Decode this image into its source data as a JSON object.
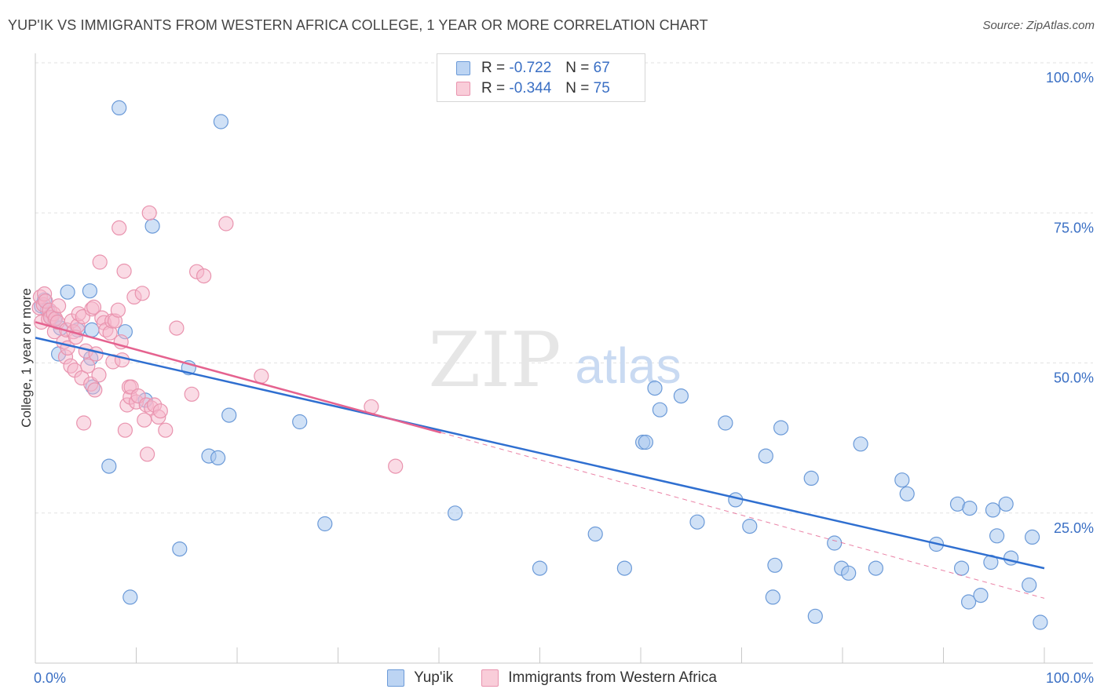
{
  "header": {
    "title": "YUP'IK VS IMMIGRANTS FROM WESTERN AFRICA COLLEGE, 1 YEAR OR MORE CORRELATION CHART",
    "source": "Source: ZipAtlas.com"
  },
  "watermark": {
    "zip": "ZIP",
    "atlas": "atlas"
  },
  "colors": {
    "blue_fill": "#a9c8ef",
    "blue_stroke": "#6b9ad8",
    "blue_line": "#2f6fd0",
    "pink_fill": "#f6b8cb",
    "pink_stroke": "#e993ae",
    "pink_line": "#e5628f",
    "axis_text": "#3a6fc4",
    "grid": "#e2e2e2"
  },
  "stats": {
    "r_label": "R =",
    "n_label": "N =",
    "rows": [
      {
        "series": "Yup'ik",
        "r": "-0.722",
        "n": "67"
      },
      {
        "series": "Immigrants from Western Africa",
        "r": "-0.344",
        "n": "75"
      }
    ]
  },
  "legend": [
    "Yup'ik",
    "Immigrants from Western Africa"
  ],
  "chart_data": {
    "type": "scatter",
    "title": "YUP'IK VS IMMIGRANTS FROM WESTERN AFRICA COLLEGE, 1 YEAR OR MORE CORRELATION CHART",
    "xlabel": "",
    "ylabel": "College, 1 year or more",
    "xlim": [
      0,
      100
    ],
    "ylim": [
      0,
      100
    ],
    "x_tick_labels": [
      "0.0%",
      "100.0%"
    ],
    "y_tick_labels": [
      "25.0%",
      "50.0%",
      "75.0%",
      "100.0%"
    ],
    "y_ticks": [
      25,
      50,
      75,
      100
    ],
    "x_ticks": [
      0,
      10,
      20,
      30,
      40,
      50,
      60,
      70,
      80,
      90,
      100
    ],
    "grid": true,
    "legend_position": "bottom",
    "series": [
      {
        "name": "Yup'ik",
        "r": -0.722,
        "n": 67,
        "trend": {
          "x": [
            0,
            100
          ],
          "y": [
            54.2,
            15.8
          ]
        },
        "points": [
          [
            0.6,
            59.5
          ],
          [
            0.9,
            60.5
          ],
          [
            1.2,
            58.8
          ],
          [
            1.6,
            57.5
          ],
          [
            2.3,
            51.5
          ],
          [
            2.5,
            55.8
          ],
          [
            3.2,
            61.8
          ],
          [
            4.2,
            55.5
          ],
          [
            5.4,
            62.0
          ],
          [
            5.5,
            50.8
          ],
          [
            5.6,
            55.5
          ],
          [
            5.7,
            46.0
          ],
          [
            7.3,
            32.8
          ],
          [
            8.3,
            92.5
          ],
          [
            8.9,
            55.2
          ],
          [
            9.4,
            11.0
          ],
          [
            10.9,
            43.8
          ],
          [
            11.6,
            72.8
          ],
          [
            14.3,
            19.0
          ],
          [
            15.2,
            49.2
          ],
          [
            17.2,
            34.5
          ],
          [
            18.1,
            34.2
          ],
          [
            18.4,
            90.2
          ],
          [
            19.2,
            41.3
          ],
          [
            26.2,
            40.2
          ],
          [
            28.7,
            23.2
          ],
          [
            41.6,
            25.0
          ],
          [
            50.0,
            15.8
          ],
          [
            55.5,
            21.5
          ],
          [
            58.4,
            15.8
          ],
          [
            60.2,
            36.8
          ],
          [
            60.5,
            36.8
          ],
          [
            61.4,
            45.8
          ],
          [
            61.9,
            42.2
          ],
          [
            64.0,
            44.5
          ],
          [
            65.6,
            23.5
          ],
          [
            68.4,
            40.0
          ],
          [
            69.4,
            27.2
          ],
          [
            70.8,
            22.8
          ],
          [
            72.4,
            34.5
          ],
          [
            73.1,
            11.0
          ],
          [
            73.3,
            16.3
          ],
          [
            73.9,
            39.2
          ],
          [
            76.9,
            30.8
          ],
          [
            77.3,
            7.8
          ],
          [
            79.2,
            20.0
          ],
          [
            79.9,
            15.8
          ],
          [
            80.6,
            15.0
          ],
          [
            81.8,
            36.5
          ],
          [
            83.3,
            15.8
          ],
          [
            85.9,
            30.5
          ],
          [
            86.4,
            28.2
          ],
          [
            89.3,
            19.8
          ],
          [
            91.4,
            26.5
          ],
          [
            91.8,
            15.8
          ],
          [
            92.5,
            10.2
          ],
          [
            92.6,
            25.8
          ],
          [
            93.7,
            11.3
          ],
          [
            94.7,
            16.8
          ],
          [
            94.9,
            25.5
          ],
          [
            95.3,
            21.2
          ],
          [
            96.2,
            26.5
          ],
          [
            96.7,
            17.5
          ],
          [
            98.5,
            13.0
          ],
          [
            98.8,
            21.0
          ],
          [
            99.6,
            6.8
          ],
          [
            1.9,
            57.2
          ]
        ]
      },
      {
        "name": "Immigrants from Western Africa",
        "r": -0.344,
        "n": 75,
        "trend": {
          "x": [
            0,
            40.2
          ],
          "y": [
            56.8,
            38.4
          ]
        },
        "trend_extension": {
          "x": [
            40.2,
            100
          ],
          "y": [
            38.4,
            10.8
          ]
        },
        "points": [
          [
            0.4,
            59.2
          ],
          [
            0.5,
            61.0
          ],
          [
            0.6,
            56.8
          ],
          [
            0.8,
            59.7
          ],
          [
            0.9,
            61.5
          ],
          [
            1.0,
            60.3
          ],
          [
            1.3,
            57.3
          ],
          [
            1.4,
            58.8
          ],
          [
            1.5,
            57.6
          ],
          [
            1.8,
            58.2
          ],
          [
            1.9,
            55.2
          ],
          [
            2.0,
            57.4
          ],
          [
            2.2,
            56.8
          ],
          [
            2.3,
            59.5
          ],
          [
            2.8,
            53.5
          ],
          [
            3.0,
            51.0
          ],
          [
            3.1,
            55.5
          ],
          [
            3.2,
            52.5
          ],
          [
            3.5,
            49.5
          ],
          [
            3.6,
            57.0
          ],
          [
            3.8,
            55.2
          ],
          [
            3.9,
            48.8
          ],
          [
            4.0,
            54.3
          ],
          [
            4.2,
            56.2
          ],
          [
            4.3,
            58.2
          ],
          [
            4.6,
            47.5
          ],
          [
            4.7,
            57.7
          ],
          [
            4.8,
            40.0
          ],
          [
            5.0,
            52.0
          ],
          [
            5.2,
            49.5
          ],
          [
            5.5,
            46.5
          ],
          [
            5.6,
            59.0
          ],
          [
            5.8,
            59.3
          ],
          [
            5.9,
            45.5
          ],
          [
            6.0,
            51.5
          ],
          [
            6.3,
            48.0
          ],
          [
            6.4,
            66.8
          ],
          [
            6.6,
            57.5
          ],
          [
            6.8,
            56.7
          ],
          [
            7.0,
            55.5
          ],
          [
            7.4,
            55.0
          ],
          [
            7.6,
            57.0
          ],
          [
            7.7,
            50.2
          ],
          [
            7.9,
            57.0
          ],
          [
            8.2,
            58.8
          ],
          [
            8.3,
            72.5
          ],
          [
            8.5,
            53.5
          ],
          [
            8.6,
            50.5
          ],
          [
            8.8,
            65.3
          ],
          [
            8.9,
            38.8
          ],
          [
            9.1,
            43.0
          ],
          [
            9.3,
            46.0
          ],
          [
            9.4,
            44.3
          ],
          [
            9.5,
            46.0
          ],
          [
            9.8,
            61.0
          ],
          [
            10.0,
            43.5
          ],
          [
            10.2,
            44.5
          ],
          [
            10.6,
            61.6
          ],
          [
            10.8,
            40.5
          ],
          [
            11.0,
            43.0
          ],
          [
            11.1,
            34.8
          ],
          [
            11.3,
            75.0
          ],
          [
            11.5,
            42.5
          ],
          [
            11.8,
            43.0
          ],
          [
            12.2,
            41.0
          ],
          [
            12.4,
            42.0
          ],
          [
            12.9,
            38.8
          ],
          [
            14.0,
            55.8
          ],
          [
            15.5,
            44.8
          ],
          [
            16.0,
            65.2
          ],
          [
            16.7,
            64.5
          ],
          [
            18.9,
            73.2
          ],
          [
            22.4,
            47.8
          ],
          [
            33.3,
            42.7
          ],
          [
            35.7,
            32.8
          ]
        ]
      }
    ]
  }
}
